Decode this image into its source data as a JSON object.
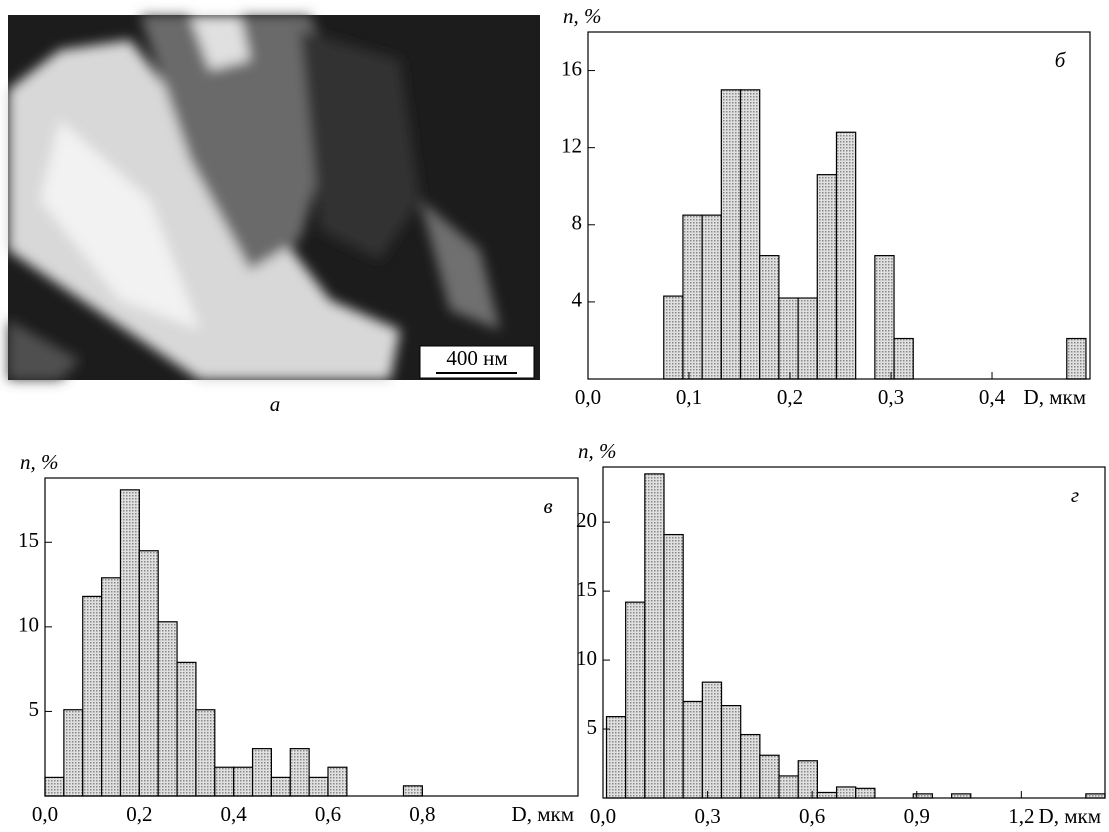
{
  "micrograph": {
    "scale_label": "400 нм",
    "panel_label": "а"
  },
  "chart_data": [
    {
      "type": "histogram",
      "panel_label": "б",
      "ylabel": "n, %",
      "xlabel": "D, мкм",
      "color": "#c4c4c4",
      "bins": [
        0.075,
        0.094,
        0.113,
        0.132,
        0.151,
        0.17,
        0.189,
        0.208,
        0.227,
        0.246,
        0.265,
        0.284,
        0.303,
        0.322,
        0.341,
        0.36,
        0.379,
        0.398,
        0.417,
        0.436,
        0.455,
        0.474,
        0.493
      ],
      "values": [
        4.3,
        8.5,
        8.5,
        15,
        15,
        6.4,
        4.2,
        4.2,
        10.6,
        12.8,
        0,
        6.4,
        2.1,
        0,
        0,
        0,
        0,
        0,
        0,
        0,
        0,
        2.1
      ],
      "xlim": [
        0,
        0.497
      ],
      "ylim": [
        0,
        18
      ],
      "xticks": [
        {
          "value": 0,
          "label": "0,0"
        },
        {
          "value": 0.1,
          "label": "0,1"
        },
        {
          "value": 0.2,
          "label": "0,2"
        },
        {
          "value": 0.3,
          "label": "0,3"
        },
        {
          "value": 0.4,
          "label": "0,4"
        }
      ],
      "yticks": [
        4,
        8,
        12,
        16
      ]
    },
    {
      "type": "histogram",
      "panel_label": "в",
      "ylabel": "n, %",
      "xlabel": "D, мкм",
      "color": "#c4c4c4",
      "bins": [
        0,
        0.04,
        0.08,
        0.12,
        0.16,
        0.2,
        0.24,
        0.28,
        0.32,
        0.36,
        0.4,
        0.44,
        0.48,
        0.52,
        0.56,
        0.6,
        0.64,
        0.68,
        0.72,
        0.76,
        0.8
      ],
      "values": [
        1.1,
        5.1,
        11.8,
        12.9,
        18.1,
        14.5,
        10.3,
        7.9,
        5.1,
        1.7,
        1.7,
        2.8,
        1.1,
        2.8,
        1.1,
        1.7,
        0,
        0,
        0,
        0.6
      ],
      "xlim": [
        0,
        1.13
      ],
      "ylim": [
        0,
        18.8
      ],
      "xticks": [
        {
          "value": 0,
          "label": "0,0"
        },
        {
          "value": 0.2,
          "label": "0,2"
        },
        {
          "value": 0.4,
          "label": "0,4"
        },
        {
          "value": 0.6,
          "label": "0,6"
        },
        {
          "value": 0.8,
          "label": "0,8"
        }
      ],
      "yticks": [
        5,
        10,
        15
      ]
    },
    {
      "type": "histogram",
      "panel_label": "г",
      "ylabel": "n, %",
      "xlabel": "D, мкм",
      "color": "#c4c4c4",
      "bins": [
        0.01,
        0.065,
        0.12,
        0.175,
        0.23,
        0.285,
        0.34,
        0.395,
        0.45,
        0.505,
        0.56,
        0.615,
        0.67,
        0.725,
        0.78,
        0.835,
        0.89,
        0.945,
        1.0,
        1.055,
        1.11,
        1.165,
        1.22,
        1.275,
        1.33,
        1.385,
        1.44
      ],
      "values": [
        5.9,
        14.2,
        23.5,
        19.1,
        7,
        8.4,
        6.7,
        4.6,
        3.1,
        1.6,
        2.7,
        0.4,
        0.8,
        0.7,
        0,
        0,
        0.3,
        0,
        0.3,
        0,
        0,
        0,
        0,
        0,
        0,
        0.3
      ],
      "xlim": [
        0,
        1.44
      ],
      "ylim": [
        0,
        24
      ],
      "xticks": [
        {
          "value": 0,
          "label": "0,0"
        },
        {
          "value": 0.3,
          "label": "0,3"
        },
        {
          "value": 0.6,
          "label": "0,6"
        },
        {
          "value": 0.9,
          "label": "0,9"
        },
        {
          "value": 1.2,
          "label": "1,2"
        }
      ],
      "yticks": [
        5,
        10,
        15,
        20
      ]
    }
  ]
}
